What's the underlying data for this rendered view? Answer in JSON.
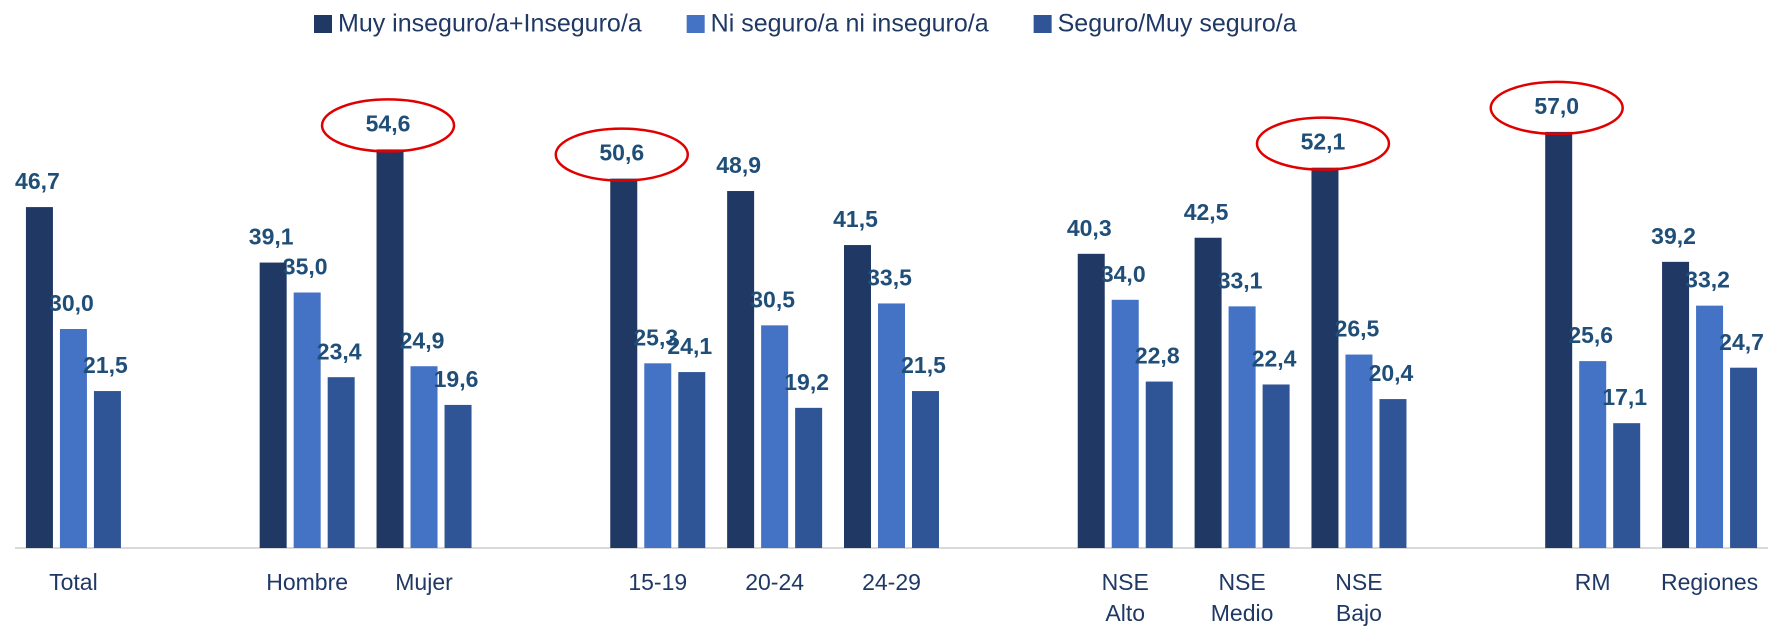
{
  "chart_data": {
    "type": "bar",
    "categories": [
      "Total",
      null,
      "Hombre",
      "Mujer",
      null,
      "15-19",
      "20-24",
      "24-29",
      null,
      "NSE\nAlto",
      "NSE\nMedio",
      "NSE\nBajo",
      null,
      "RM",
      "Regiones"
    ],
    "series": [
      {
        "name": "Muy inseguro/a+Inseguro/a",
        "color": "#1f3864",
        "values": [
          46.7,
          null,
          39.1,
          54.6,
          null,
          50.6,
          48.9,
          41.5,
          null,
          40.3,
          42.5,
          52.1,
          null,
          57.0,
          39.2
        ],
        "value_labels": [
          "46,7",
          null,
          "39,1",
          "54,6",
          null,
          "50,6",
          "48,9",
          "41,5",
          null,
          "40,3",
          "42,5",
          "52,1",
          null,
          "57,0",
          "39,2"
        ]
      },
      {
        "name": "Ni seguro/a ni inseguro/a",
        "color": "#4472c4",
        "values": [
          30.0,
          null,
          35.0,
          24.9,
          null,
          25.3,
          30.5,
          33.5,
          null,
          34.0,
          33.1,
          26.5,
          null,
          25.6,
          33.2
        ],
        "value_labels": [
          "30,0",
          null,
          "35,0",
          "24,9",
          null,
          "25,3",
          "30,5",
          "33,5",
          null,
          "34,0",
          "33,1",
          "26,5",
          null,
          "25,6",
          "33,2"
        ]
      },
      {
        "name": "Seguro/Muy seguro/a",
        "color": "#2f5597",
        "values": [
          21.5,
          null,
          23.4,
          19.6,
          null,
          24.1,
          19.2,
          21.5,
          null,
          22.8,
          22.4,
          20.4,
          null,
          17.1,
          24.7
        ],
        "value_labels": [
          "21,5",
          null,
          "23,4",
          "19,6",
          null,
          "24,1",
          "19,2",
          "21,5",
          null,
          "22,8",
          "22,4",
          "20,4",
          null,
          "17,1",
          "24,7"
        ]
      }
    ],
    "ylim": [
      0,
      75
    ]
  }
}
